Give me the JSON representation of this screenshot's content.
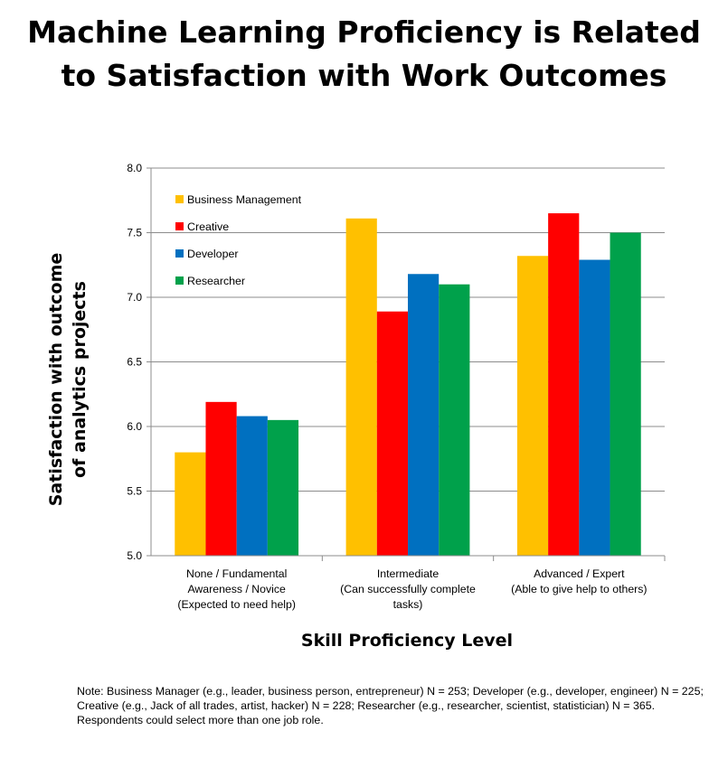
{
  "chart_data": {
    "type": "bar",
    "title_lines": [
      "Machine Learning Proficiency is Related",
      "to Satisfaction with Work Outcomes"
    ],
    "xlabel": "Skill Proficiency Level",
    "ylabel_lines": [
      "Satisfaction with outcome",
      "of analytics  projects"
    ],
    "categories": [
      [
        "None / Fundamental",
        "Awareness / Novice",
        "(Expected to need help)"
      ],
      [
        "Intermediate",
        "(Can successfully complete",
        "tasks)"
      ],
      [
        "Advanced / Expert",
        "(Able to give help to others)"
      ]
    ],
    "series": [
      {
        "name": "Business Management",
        "color": "#FFC000",
        "values": [
          5.8,
          7.61,
          7.32
        ]
      },
      {
        "name": "Creative",
        "color": "#FF0000",
        "values": [
          6.19,
          6.89,
          7.65
        ]
      },
      {
        "name": "Developer",
        "color": "#0070C0",
        "values": [
          6.08,
          7.18,
          7.29
        ]
      },
      {
        "name": "Researcher",
        "color": "#00A14B",
        "values": [
          6.05,
          7.1,
          7.5
        ]
      }
    ],
    "ylim": [
      5.0,
      8.0
    ],
    "yticks": [
      "5.0",
      "5.5",
      "6.0",
      "6.5",
      "7.0",
      "7.5",
      "8.0"
    ],
    "grid": true,
    "legend_position": "top-left"
  },
  "note": "Note: Business Manager (e.g., leader, business person, entrepreneur) N = 253; Developer (e.g., developer, engineer) N = 225; Creative (e.g., Jack of all trades, artist, hacker) N = 228; Researcher (e.g., researcher, scientist, statistician)  N = 365. Respondents could select more than one job role."
}
